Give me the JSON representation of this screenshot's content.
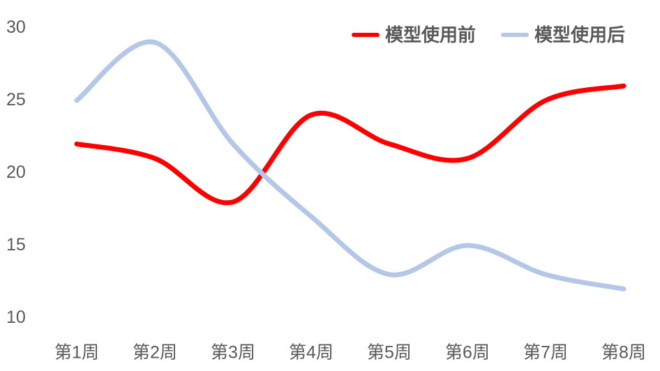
{
  "chart_data": {
    "type": "line",
    "title": "",
    "xlabel": "",
    "ylabel": "",
    "categories": [
      "第1周",
      "第2周",
      "第3周",
      "第4周",
      "第5周",
      "第6周",
      "第7周",
      "第8周"
    ],
    "series": [
      {
        "name": "模型使用前",
        "color": "#FF0000",
        "values": [
          22,
          21,
          18,
          24,
          22,
          21,
          25,
          26
        ]
      },
      {
        "name": "模型使用后",
        "color": "#B4C7E7",
        "values": [
          25,
          29,
          22,
          17,
          13,
          15,
          13,
          12
        ]
      }
    ],
    "yticks": [
      30,
      25,
      20,
      15,
      10
    ],
    "ylim": [
      10,
      30
    ],
    "grid": false,
    "smooth": true,
    "legend_position": "top-right",
    "text_color": "#595959",
    "background_color": "#FFFFFF"
  }
}
